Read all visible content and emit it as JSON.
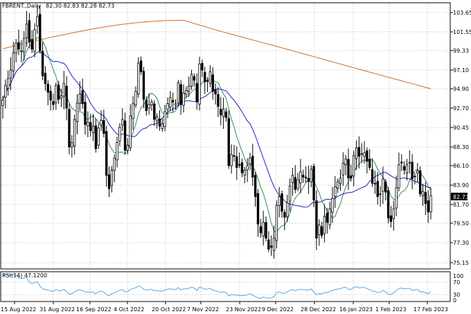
{
  "header": {
    "symbol": "FBRENT.,Daily",
    "ohlc": "82.30 82.83 82.28 82.73"
  },
  "rsi_label": "RSI(14) 47.1200",
  "last_price_label": "82.73",
  "colors": {
    "background": "#ffffff",
    "grid": "#c8c8c8",
    "candle": "#000000",
    "ma_fast": "#2e8b57",
    "ma_mid": "#1f1fbf",
    "ma_slow": "#d2691e",
    "rsi": "#4da6e8"
  },
  "chart_data": [
    {
      "type": "candlestick",
      "title": "FBRENT.,Daily",
      "y_ticks": [
        "103.65",
        "101.55",
        "99.33",
        "97.10",
        "94.90",
        "92.70",
        "90.45",
        "88.30",
        "86.10",
        "83.90",
        "81.70",
        "79.50",
        "77.30",
        "75.15"
      ],
      "x_ticks": [
        "15 Aug 2022",
        "31 Aug 2022",
        "16 Sep 2022",
        "4 Oct 2022",
        "20 Oct 2022",
        "7 Nov 2022",
        "23 Nov 2022",
        "9 Dec 2022",
        "28 Dec 2022",
        "16 Jan 2023",
        "1 Feb 2023",
        "17 Feb 2023"
      ],
      "ylim": [
        74.0,
        104.8
      ],
      "grid": true,
      "last_price": 82.73,
      "close": [
        93.6,
        95.3,
        96.1,
        97.1,
        99.1,
        100.2,
        99.5,
        99.3,
        100.8,
        102.4,
        100.4,
        99.5,
        101.8,
        103.2,
        99.3,
        96.4,
        95.5,
        94.5,
        93.6,
        93.1,
        95.3,
        93.7,
        94.1,
        95.5,
        92.7,
        88.3,
        88.8,
        91.4,
        93.3,
        94.3,
        93.2,
        90.8,
        91.1,
        90.1,
        90.6,
        88.1,
        90.4,
        91.3,
        89.8,
        85.0,
        83.5,
        85.6,
        87.0,
        88.8,
        90.5,
        91.4,
        87.9,
        88.5,
        91.8,
        93.2,
        94.6,
        97.9,
        96.9,
        93.7,
        92.4,
        93.1,
        93.4,
        91.4,
        91.7,
        90.6,
        90.9,
        92.3,
        93.2,
        93.9,
        93.4,
        93.2,
        95.6,
        93.1,
        94.4,
        94.7,
        95.2,
        96.6,
        95.9,
        93.4,
        97.8,
        97.1,
        95.7,
        95.8,
        96.9,
        94.6,
        94.3,
        92.9,
        91.9,
        92.6,
        91.6,
        86.1,
        87.4,
        87.2,
        85.9,
        86.2,
        85.3,
        85.6,
        86.1,
        87.0,
        84.8,
        82.6,
        79.4,
        78.4,
        79.6,
        77.8,
        76.6,
        76.8,
        77.8,
        81.6,
        82.6,
        80.9,
        80.2,
        81.9,
        83.8,
        85.0,
        83.4,
        84.5,
        85.4,
        84.8,
        84.7,
        84.3,
        85.7,
        82.2,
        77.8,
        79.3,
        78.1,
        80.3,
        79.6,
        81.2,
        82.4,
        83.7,
        84.3,
        84.7,
        86.4,
        86.9,
        84.7,
        84.7,
        87.3,
        88.2,
        87.2,
        87.5,
        87.6,
        86.6,
        85.9,
        84.1,
        84.1,
        82.6,
        82.9,
        84.6,
        83.1,
        80.1,
        79.7,
        81.2,
        83.6,
        86.2,
        86.4,
        85.6,
        86.2,
        86.5,
        84.6,
        84.9,
        85.5,
        82.9,
        83.2,
        81.8,
        80.8,
        82.7
      ]
    },
    {
      "type": "line",
      "name": "RSI(14)",
      "y_ticks": [
        "100",
        "70",
        "30",
        "0"
      ],
      "ylim": [
        0,
        100
      ]
    }
  ]
}
